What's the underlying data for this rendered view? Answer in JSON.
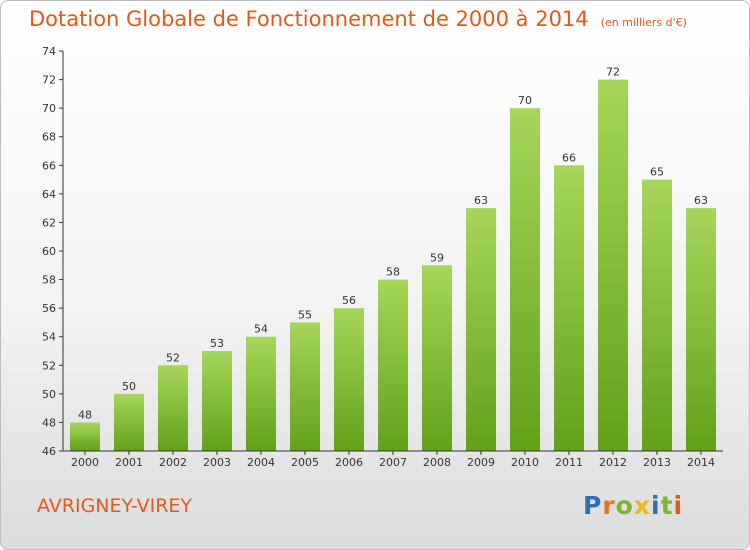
{
  "header": {
    "title": "Dotation Globale de Fonctionnement de 2000 à 2014",
    "subtitle": "(en milliers d'€)"
  },
  "footer": {
    "commune": "AVRIGNEY-VIREY",
    "logo_text": "Proxiti",
    "logo_colors": [
      "#2e6fb7",
      "#e8731c",
      "#7db62c",
      "#e8b81c",
      "#2e6fb7",
      "#7db62c",
      "#e05a1c"
    ]
  },
  "colors": {
    "bar_light": "#a6d65a",
    "bar_dark": "#62a11a",
    "title": "#e05a1c"
  },
  "chart_data": {
    "type": "bar",
    "title": "Dotation Globale de Fonctionnement de 2000 à 2014",
    "subtitle": "(en milliers d'€)",
    "xlabel": "",
    "ylabel": "",
    "categories": [
      "2000",
      "2001",
      "2002",
      "2003",
      "2004",
      "2005",
      "2006",
      "2007",
      "2008",
      "2009",
      "2010",
      "2011",
      "2012",
      "2013",
      "2014"
    ],
    "values": [
      48,
      50,
      52,
      53,
      54,
      55,
      56,
      58,
      59,
      63,
      70,
      66,
      72,
      65,
      63
    ],
    "ylim": [
      46,
      74
    ],
    "yticks": [
      46,
      48,
      50,
      52,
      54,
      56,
      58,
      60,
      62,
      64,
      66,
      68,
      70,
      72,
      74
    ],
    "grid": false,
    "legend": "none"
  }
}
